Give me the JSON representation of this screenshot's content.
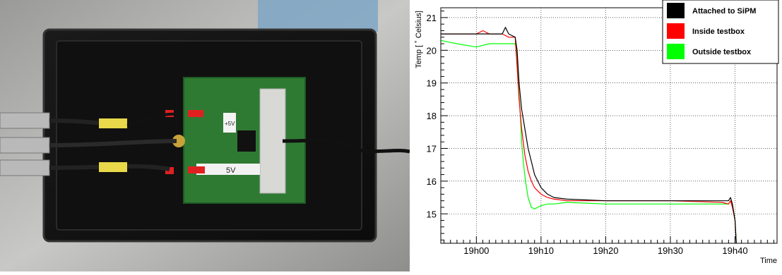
{
  "photo": {
    "subject": "SiPM test box with PCB and coaxial connectors",
    "board_label": "5V",
    "small_label": "+5V"
  },
  "chart_data": {
    "type": "line",
    "ylabel": "Temp [ ˚ Celsius]",
    "xlabel": "Time",
    "ylim": [
      14.1,
      21.3
    ],
    "xlim_minutes": [
      -5.5,
      46.5
    ],
    "x_unit": "minutes after 19h00",
    "y_ticks": [
      15,
      16,
      17,
      18,
      19,
      20,
      21
    ],
    "x_ticks": [
      {
        "label": "19h00",
        "value": 0
      },
      {
        "label": "19h10",
        "value": 10
      },
      {
        "label": "19h20",
        "value": 20
      },
      {
        "label": "19h30",
        "value": 30
      },
      {
        "label": "19h40",
        "value": 40
      }
    ],
    "grid": true,
    "legend_position": "top-right",
    "series": [
      {
        "name": "Attached to SiPM",
        "color": "#000000",
        "x": [
          -5.5,
          -2,
          0,
          2,
          4,
          4.5,
          5,
          6,
          6.3,
          6.6,
          7,
          7.5,
          8,
          8.5,
          9,
          9.5,
          10,
          11,
          12,
          14,
          20,
          30,
          38,
          39,
          39.3,
          39.6,
          40,
          40.2
        ],
        "y": [
          20.5,
          20.5,
          20.5,
          20.5,
          20.5,
          20.7,
          20.5,
          20.4,
          20.0,
          19.0,
          18.2,
          17.6,
          17.0,
          16.6,
          16.2,
          16.0,
          15.8,
          15.6,
          15.5,
          15.45,
          15.4,
          15.4,
          15.4,
          15.4,
          15.5,
          15.3,
          14.8,
          14.1
        ]
      },
      {
        "name": "Inside testbox",
        "color": "#ff0000",
        "x": [
          -5.5,
          -2,
          0,
          1,
          2,
          4,
          5,
          6,
          6.3,
          6.6,
          7,
          7.5,
          8,
          8.5,
          9,
          9.5,
          10,
          11,
          12,
          14,
          20,
          30,
          38,
          39,
          39.3,
          39.6,
          40,
          40.2
        ],
        "y": [
          20.5,
          20.5,
          20.5,
          20.6,
          20.5,
          20.5,
          20.4,
          20.4,
          19.5,
          18.5,
          17.6,
          16.8,
          16.3,
          16.0,
          15.8,
          15.7,
          15.6,
          15.5,
          15.45,
          15.4,
          15.4,
          15.4,
          15.35,
          15.3,
          15.4,
          15.2,
          14.8,
          14.1
        ]
      },
      {
        "name": "Outside testbox",
        "color": "#00ff00",
        "x": [
          -5.5,
          -3,
          0,
          2,
          4,
          5,
          6,
          6.2,
          6.5,
          6.8,
          7,
          7.3,
          7.6,
          8,
          8.5,
          9,
          9.5,
          10,
          11,
          12,
          14,
          20,
          30,
          38,
          39,
          39.3,
          39.6,
          40,
          40.2
        ],
        "y": [
          20.3,
          20.2,
          20.1,
          20.2,
          20.2,
          20.2,
          20.2,
          20.0,
          19.0,
          18.0,
          17.2,
          16.5,
          16.0,
          15.5,
          15.2,
          15.15,
          15.2,
          15.25,
          15.3,
          15.3,
          15.35,
          15.3,
          15.3,
          15.3,
          15.3,
          15.4,
          15.3,
          14.8,
          14.1
        ]
      }
    ]
  }
}
